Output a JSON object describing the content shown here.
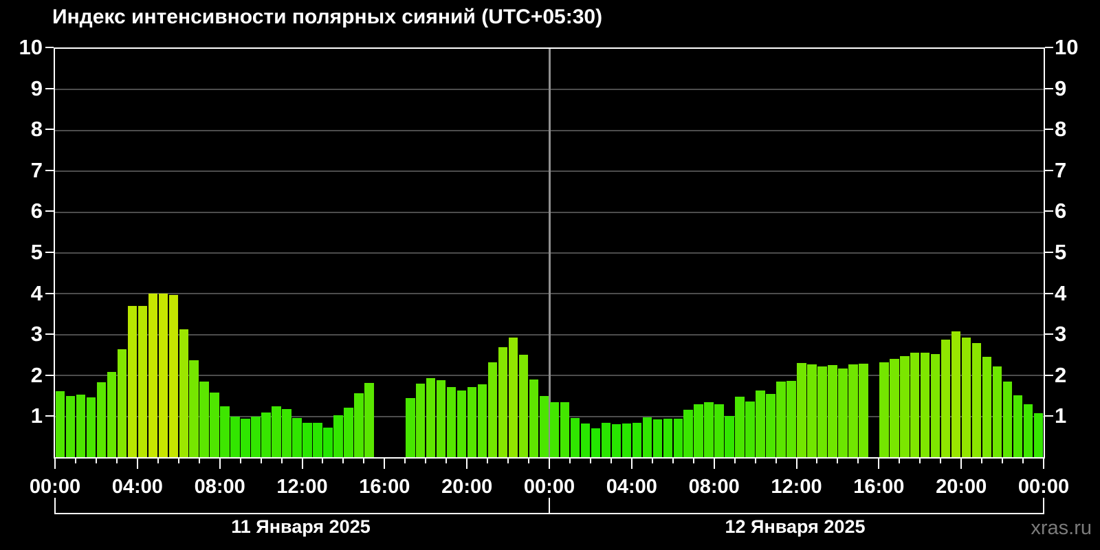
{
  "title": "Индекс интенсивности полярных сияний (UTC+05:30)",
  "watermark": "xras.ru",
  "chart_data": {
    "type": "bar",
    "title": "Индекс интенсивности полярных сияний (UTC+05:30)",
    "timezone": "UTC+05:30",
    "interval_minutes": 30,
    "hours_total": 48,
    "ylim": [
      0,
      10
    ],
    "yticks": [
      1,
      2,
      3,
      4,
      5,
      6,
      7,
      8,
      9,
      10
    ],
    "x_major_tick_hours": 4,
    "x_labels": [
      "00:00",
      "04:00",
      "08:00",
      "12:00",
      "16:00",
      "20:00",
      "00:00",
      "04:00",
      "08:00",
      "12:00",
      "16:00",
      "20:00",
      "00:00"
    ],
    "day_labels": [
      "11 Января 2025",
      "12 Января 2025"
    ],
    "grid": "on",
    "legend": "none",
    "values": [
      1.61,
      1.5,
      1.54,
      1.47,
      1.84,
      2.08,
      2.65,
      3.71,
      3.71,
      4.0,
      4.0,
      3.97,
      3.13,
      2.37,
      1.86,
      1.58,
      1.24,
      1.0,
      0.95,
      1.0,
      1.1,
      1.24,
      1.18,
      0.96,
      0.85,
      0.84,
      0.72,
      1.02,
      1.22,
      1.56,
      1.82,
      null,
      null,
      null,
      1.45,
      1.8,
      1.94,
      1.88,
      1.72,
      1.63,
      1.72,
      1.79,
      2.32,
      2.7,
      2.93,
      2.51,
      1.91,
      1.5,
      1.34,
      1.35,
      0.96,
      0.83,
      0.7,
      0.85,
      0.8,
      0.83,
      0.85,
      0.98,
      0.92,
      0.94,
      0.94,
      1.17,
      1.3,
      1.34,
      1.3,
      1.01,
      1.48,
      1.37,
      1.64,
      1.55,
      1.86,
      1.87,
      2.31,
      2.28,
      2.22,
      2.26,
      2.18,
      2.27,
      2.29,
      null,
      2.33,
      2.41,
      2.47,
      2.56,
      2.56,
      2.53,
      2.88,
      3.08,
      2.93,
      2.8,
      2.46,
      2.22,
      1.86,
      1.51,
      1.29,
      1.08
    ],
    "bar_color_rule": "hsl(120 - 13*value, 100%, 45%)",
    "colors": {
      "background": "#000000",
      "frame": "#ffffff",
      "grid_line": "#4d4d4d",
      "midnight_line": "#8f8f8f",
      "bar_low": "#2fd900",
      "bar_high": "#c7e500",
      "text": "#ffffff",
      "watermark": "#7b7b7b"
    }
  }
}
